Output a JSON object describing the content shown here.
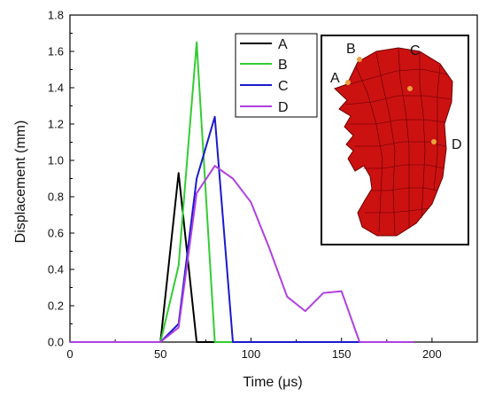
{
  "chart_data": {
    "type": "line",
    "xlabel": "Time (μs)",
    "ylabel": "Displacement (mm)",
    "xlim": [
      0,
      225
    ],
    "ylim": [
      0,
      1.8
    ],
    "xticks": [
      0,
      50,
      100,
      150,
      200
    ],
    "yticks": [
      0.0,
      0.2,
      0.4,
      0.6,
      0.8,
      1.0,
      1.2,
      1.4,
      1.6,
      1.8
    ],
    "xtick_labels": [
      "0",
      "50",
      "100",
      "150",
      "200"
    ],
    "ytick_labels": [
      "0.0",
      "0.2",
      "0.4",
      "0.6",
      "0.8",
      "1.0",
      "1.2",
      "1.4",
      "1.6",
      "1.8"
    ],
    "grid": false,
    "legend_position": "top-center",
    "series": [
      {
        "name": "A",
        "color": "#000000",
        "x": [
          0,
          50,
          60,
          70,
          190
        ],
        "y": [
          0,
          0,
          0.93,
          0,
          0
        ]
      },
      {
        "name": "B",
        "color": "#33cc33",
        "x": [
          0,
          50,
          60,
          70,
          80,
          190
        ],
        "y": [
          0,
          0,
          0.42,
          1.65,
          0,
          0
        ]
      },
      {
        "name": "C",
        "color": "#1a1acc",
        "x": [
          0,
          50,
          60,
          70,
          80,
          90,
          190
        ],
        "y": [
          0,
          0,
          0.1,
          0.9,
          1.24,
          0,
          0
        ]
      },
      {
        "name": "D",
        "color": "#b040e0",
        "x": [
          0,
          50,
          60,
          70,
          80,
          90,
          100,
          110,
          120,
          130,
          140,
          150,
          160,
          190
        ],
        "y": [
          0,
          0,
          0.08,
          0.82,
          0.97,
          0.9,
          0.77,
          0.52,
          0.25,
          0.17,
          0.27,
          0.28,
          0,
          0
        ]
      }
    ],
    "inset": {
      "labels": [
        "A",
        "B",
        "C",
        "D"
      ],
      "shape_color": "#cc1111",
      "marker_color": "#e8a040"
    }
  }
}
